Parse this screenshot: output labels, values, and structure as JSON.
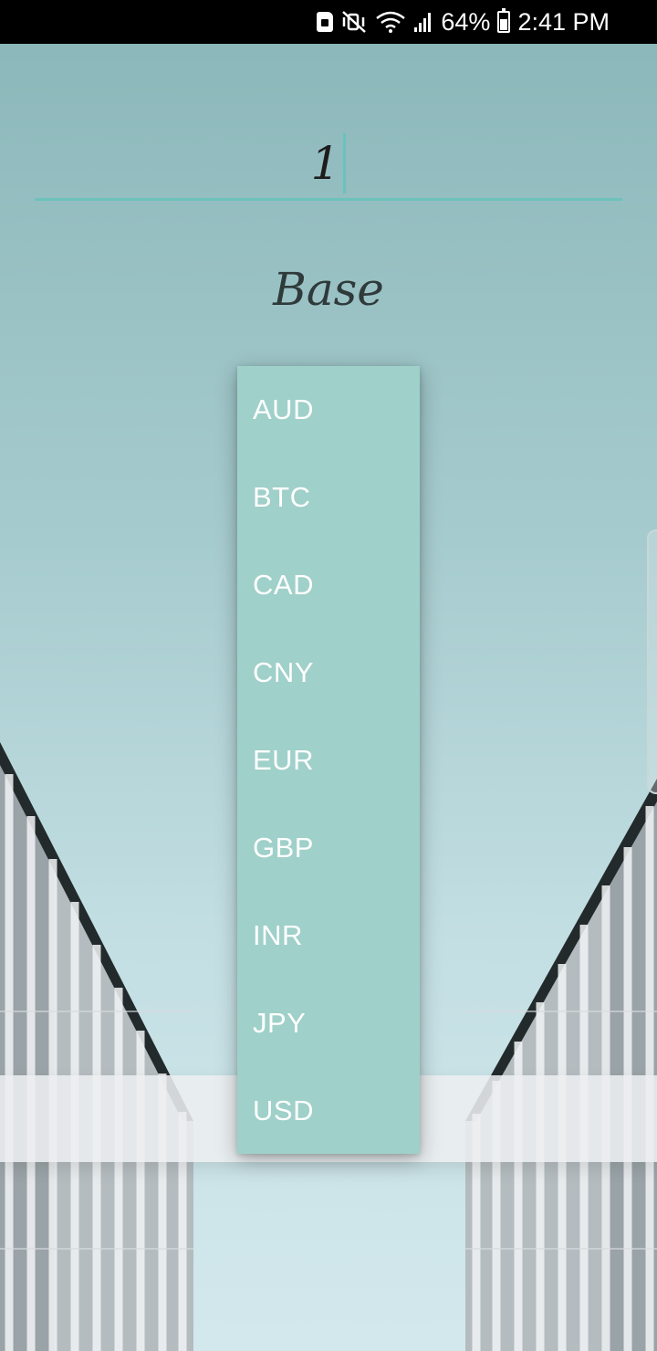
{
  "status_bar": {
    "battery": "64%",
    "time": "2:41 PM",
    "icons": [
      "sim-card-icon",
      "mute-vibrate-icon",
      "wifi-icon",
      "signal-icon",
      "battery-charging-icon"
    ]
  },
  "amount": {
    "value": "1"
  },
  "base": {
    "label": "Base"
  },
  "dropdown": {
    "options": [
      "AUD",
      "BTC",
      "CAD",
      "CNY",
      "EUR",
      "GBP",
      "INR",
      "JPY",
      "USD"
    ]
  },
  "colors": {
    "accent": "#6cc2bb",
    "dropdown_bg": "#9fd0c9",
    "status_bar": "#000000"
  }
}
